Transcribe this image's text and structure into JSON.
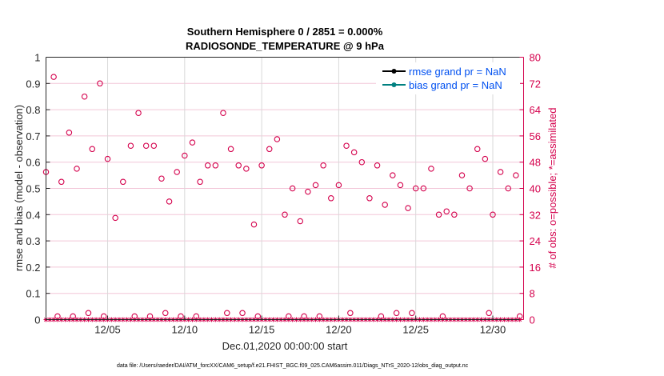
{
  "chart_data": {
    "type": "scatter",
    "title": [
      "Southern Hemisphere 0 / 2851 = 0.000%",
      "RADIOSONDE_TEMPERATURE @ 9 hPa"
    ],
    "xlabel": "Dec.01,2020 00:00:00 start",
    "ylabel": "rmse and bias (model - observation)",
    "ylabel_right": "# of obs: o=possible; *=assimilated",
    "xlim": [
      "2020-12-01 00:00",
      "2021-01-01 00:00"
    ],
    "ylim": [
      0,
      1
    ],
    "ylim_right": [
      0,
      80
    ],
    "xticks": [
      {
        "date": "2020-12-05 00:00",
        "label": "12/05"
      },
      {
        "date": "2020-12-10 00:00",
        "label": "12/10"
      },
      {
        "date": "2020-12-15 00:00",
        "label": "12/15"
      },
      {
        "date": "2020-12-20 00:00",
        "label": "12/20"
      },
      {
        "date": "2020-12-25 00:00",
        "label": "12/25"
      },
      {
        "date": "2020-12-30 00:00",
        "label": "12/30"
      }
    ],
    "yticks": [
      "0",
      "0.1",
      "0.2",
      "0.3",
      "0.4",
      "0.5",
      "0.6",
      "0.7",
      "0.8",
      "0.9",
      "1"
    ],
    "yticks_right": [
      "0",
      "8",
      "16",
      "24",
      "32",
      "40",
      "48",
      "56",
      "64",
      "72",
      "80"
    ],
    "grid": true,
    "legend_position": "top-right",
    "legend": [
      {
        "label": "rmse grand pr = NaN",
        "color": "#000000"
      },
      {
        "label": "bias grand pr = NaN",
        "color": "#008080"
      }
    ],
    "series_color": "#d4004c",
    "possible_obs": [
      [
        "2020-12-01 00:00",
        45
      ],
      [
        "2020-12-01 12:00",
        74
      ],
      [
        "2020-12-01 18:00",
        1
      ],
      [
        "2020-12-02 00:00",
        42
      ],
      [
        "2020-12-02 12:00",
        57
      ],
      [
        "2020-12-02 18:00",
        1
      ],
      [
        "2020-12-03 00:00",
        46
      ],
      [
        "2020-12-03 12:00",
        68
      ],
      [
        "2020-12-03 18:00",
        2
      ],
      [
        "2020-12-04 00:00",
        52
      ],
      [
        "2020-12-04 12:00",
        72
      ],
      [
        "2020-12-04 18:00",
        1
      ],
      [
        "2020-12-05 00:00",
        49
      ],
      [
        "2020-12-05 12:00",
        31
      ],
      [
        "2020-12-06 00:00",
        42
      ],
      [
        "2020-12-06 12:00",
        53
      ],
      [
        "2020-12-06 18:00",
        1
      ],
      [
        "2020-12-07 00:00",
        63
      ],
      [
        "2020-12-07 12:00",
        53
      ],
      [
        "2020-12-07 18:00",
        1
      ],
      [
        "2020-12-08 00:00",
        53
      ],
      [
        "2020-12-08 12:00",
        43
      ],
      [
        "2020-12-08 18:00",
        2
      ],
      [
        "2020-12-09 00:00",
        36
      ],
      [
        "2020-12-09 12:00",
        45
      ],
      [
        "2020-12-09 18:00",
        1
      ],
      [
        "2020-12-10 00:00",
        50
      ],
      [
        "2020-12-10 12:00",
        54
      ],
      [
        "2020-12-10 18:00",
        1
      ],
      [
        "2020-12-11 00:00",
        42
      ],
      [
        "2020-12-11 12:00",
        47
      ],
      [
        "2020-12-12 00:00",
        47
      ],
      [
        "2020-12-12 12:00",
        63
      ],
      [
        "2020-12-12 18:00",
        2
      ],
      [
        "2020-12-13 00:00",
        52
      ],
      [
        "2020-12-13 12:00",
        47
      ],
      [
        "2020-12-13 18:00",
        2
      ],
      [
        "2020-12-14 00:00",
        46
      ],
      [
        "2020-12-14 12:00",
        29
      ],
      [
        "2020-12-14 18:00",
        1
      ],
      [
        "2020-12-15 00:00",
        47
      ],
      [
        "2020-12-15 12:00",
        52
      ],
      [
        "2020-12-16 00:00",
        55
      ],
      [
        "2020-12-16 12:00",
        32
      ],
      [
        "2020-12-16 18:00",
        1
      ],
      [
        "2020-12-17 00:00",
        40
      ],
      [
        "2020-12-17 12:00",
        30
      ],
      [
        "2020-12-17 18:00",
        1
      ],
      [
        "2020-12-18 00:00",
        39
      ],
      [
        "2020-12-18 12:00",
        41
      ],
      [
        "2020-12-18 18:00",
        1
      ],
      [
        "2020-12-19 00:00",
        47
      ],
      [
        "2020-12-19 12:00",
        37
      ],
      [
        "2020-12-20 00:00",
        41
      ],
      [
        "2020-12-20 12:00",
        53
      ],
      [
        "2020-12-20 18:00",
        2
      ],
      [
        "2020-12-21 00:00",
        51
      ],
      [
        "2020-12-21 12:00",
        48
      ],
      [
        "2020-12-22 00:00",
        37
      ],
      [
        "2020-12-22 12:00",
        47
      ],
      [
        "2020-12-22 18:00",
        1
      ],
      [
        "2020-12-23 00:00",
        35
      ],
      [
        "2020-12-23 12:00",
        44
      ],
      [
        "2020-12-23 18:00",
        2
      ],
      [
        "2020-12-24 00:00",
        41
      ],
      [
        "2020-12-24 12:00",
        34
      ],
      [
        "2020-12-24 18:00",
        2
      ],
      [
        "2020-12-25 00:00",
        40
      ],
      [
        "2020-12-25 12:00",
        40
      ],
      [
        "2020-12-26 00:00",
        46
      ],
      [
        "2020-12-26 12:00",
        32
      ],
      [
        "2020-12-26 18:00",
        1
      ],
      [
        "2020-12-27 00:00",
        33
      ],
      [
        "2020-12-27 12:00",
        32
      ],
      [
        "2020-12-28 00:00",
        44
      ],
      [
        "2020-12-28 12:00",
        40
      ],
      [
        "2020-12-29 00:00",
        52
      ],
      [
        "2020-12-29 12:00",
        49
      ],
      [
        "2020-12-29 18:00",
        2
      ],
      [
        "2020-12-30 00:00",
        32
      ],
      [
        "2020-12-30 12:00",
        45
      ],
      [
        "2020-12-31 00:00",
        40
      ],
      [
        "2020-12-31 12:00",
        44
      ],
      [
        "2020-12-31 18:00",
        1
      ]
    ],
    "assimilated_obs": {
      "from": "2020-12-01 00:00",
      "to": "2020-12-31 18:00",
      "interval_hours": 6,
      "value": 0
    }
  },
  "footer": "data file: /Users/raeder/DAI/ATM_forcXX/CAM6_setup/f.e21.FHIST_BGC.f09_025.CAM6assim.011/Diags_NTrS_2020-12/obs_diag_output.nc"
}
